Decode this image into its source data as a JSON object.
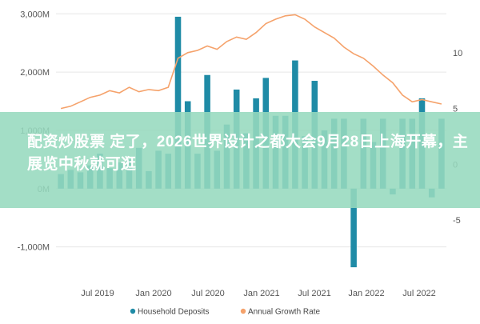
{
  "banner": {
    "headline": "配资炒股票 定了，2026世界设计之都大会9月28日上海开幕，主展览中秋就可逛"
  },
  "chart_data": {
    "type": "bar",
    "title": "",
    "xlabel": "",
    "ylabel": "",
    "left_axis": {
      "range": [
        -1500,
        3100
      ],
      "ticks": [
        3000,
        2000,
        1000,
        0,
        -1000
      ],
      "tick_labels": [
        "3,000M",
        "2,000M",
        "1,000M",
        "0M",
        "-1,000M"
      ]
    },
    "right_axis": {
      "range": [
        -10,
        14
      ],
      "ticks": [
        10,
        5,
        0,
        -5
      ],
      "tick_labels": [
        "10",
        "5",
        "0",
        "-5"
      ]
    },
    "x_tick_labels": [
      "Jul 2019",
      "Jan 2020",
      "Jul 2020",
      "Jan 2021",
      "Jul 2021",
      "Jan 2022",
      "Jul 2022"
    ],
    "grid": true,
    "legend_position": "bottom",
    "colors": {
      "bars": "#1f8ba6",
      "line": "#f5a26b",
      "grid": "#e6e6e6",
      "banner": "#96dabe"
    },
    "series": [
      {
        "name": "Household Deposits",
        "kind": "bar",
        "axis": "left",
        "values": [
          250,
          320,
          280,
          400,
          600,
          350,
          450,
          500,
          700,
          300,
          650,
          600,
          2950,
          1500,
          600,
          1950,
          650,
          1100,
          1700,
          950,
          1550,
          1900,
          1250,
          1250,
          2200,
          900,
          1850,
          1000,
          1200,
          1200,
          -1350,
          1200,
          800,
          1200,
          -100,
          1200,
          1200,
          1550,
          -150,
          1200
        ]
      },
      {
        "name": "Annual Growth Rate",
        "kind": "line",
        "axis": "right",
        "values": [
          5.0,
          5.2,
          5.6,
          6.0,
          6.2,
          6.6,
          6.4,
          6.9,
          6.5,
          6.7,
          6.6,
          6.9,
          9.5,
          10.0,
          10.2,
          10.6,
          10.3,
          11.0,
          11.4,
          11.2,
          11.8,
          12.6,
          13.0,
          13.3,
          13.4,
          13.0,
          12.3,
          11.8,
          11.3,
          10.5,
          9.9,
          9.5,
          8.8,
          8.0,
          7.3,
          6.2,
          5.6,
          5.8,
          5.6,
          5.4
        ]
      }
    ]
  }
}
